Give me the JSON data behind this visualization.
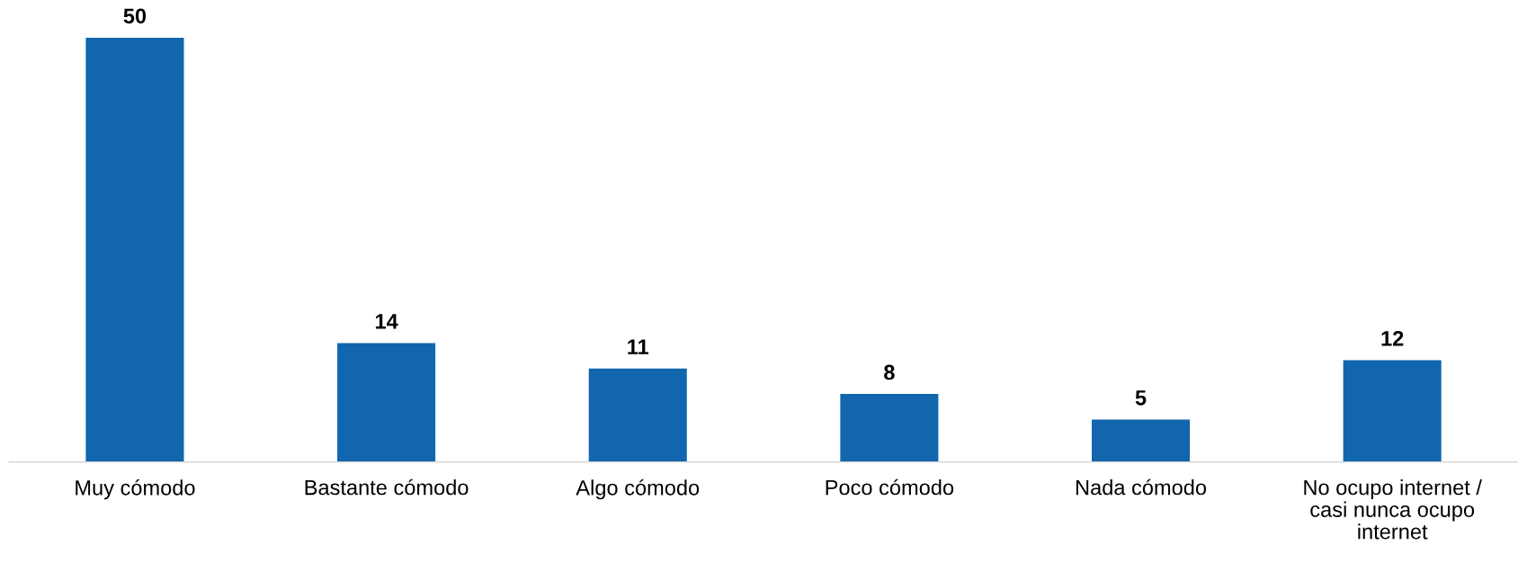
{
  "chart_data": {
    "type": "bar",
    "categories": [
      "Muy cómodo",
      "Bastante cómodo",
      "Algo cómodo",
      "Poco cómodo",
      "Nada cómodo",
      "No ocupo internet / casi nunca ocupo internet"
    ],
    "values": [
      50,
      14,
      11,
      8,
      5,
      12
    ],
    "color": "#1166ae",
    "data_labels": true,
    "grid": false,
    "legend": false
  }
}
